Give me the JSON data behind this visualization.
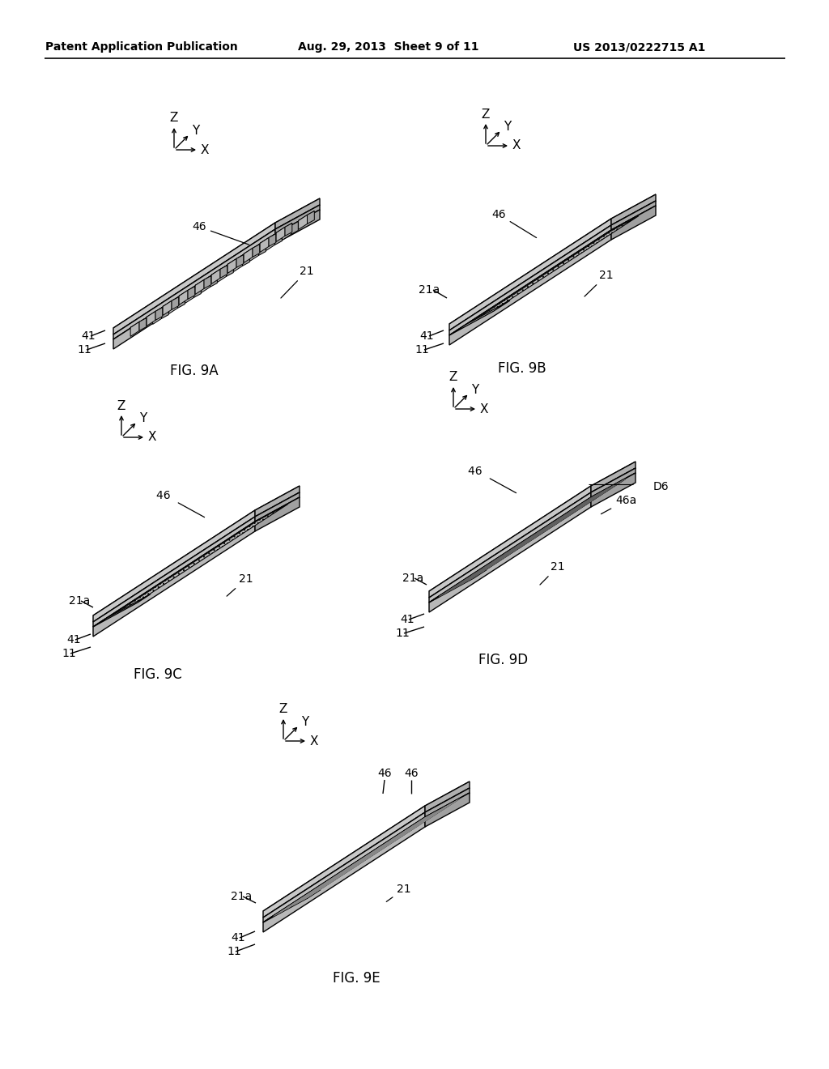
{
  "header_left": "Patent Application Publication",
  "header_mid": "Aug. 29, 2013  Sheet 9 of 11",
  "header_right": "US 2013/0222715 A1",
  "bg_color": "#ffffff",
  "line_color": "#000000",
  "face_top": "#e8e8e8",
  "face_side": "#c8c8c8",
  "face_front": "#d4d4d4",
  "face_top2": "#f0f0f0",
  "face_side2": "#d0d0d0"
}
